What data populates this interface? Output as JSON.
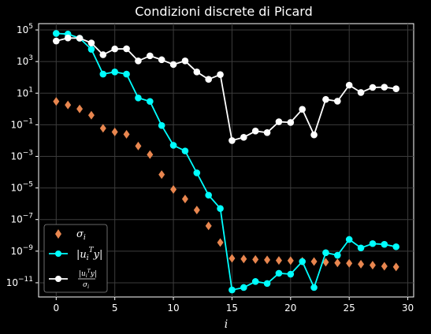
{
  "chart_data": {
    "type": "scatter",
    "title": "Condizioni discrete di Picard",
    "xlabel": "i",
    "ylabel": "",
    "xlim": [
      -1.5,
      30.5
    ],
    "ylim_log10": [
      -11.9,
      5.4
    ],
    "y_scale": "log",
    "grid": true,
    "legend_position": "lower-left",
    "x_ticks": [
      0,
      5,
      10,
      15,
      20,
      25,
      30
    ],
    "y_ticks": [
      {
        "base": "10",
        "exp": "5",
        "value": 100000
      },
      {
        "base": "10",
        "exp": "3",
        "value": 1000
      },
      {
        "base": "10",
        "exp": "1",
        "value": 10
      },
      {
        "base": "10",
        "exp": "−1",
        "value": 0.1
      },
      {
        "base": "10",
        "exp": "−3",
        "value": 0.001
      },
      {
        "base": "10",
        "exp": "−5",
        "value": 1e-05
      },
      {
        "base": "10",
        "exp": "−7",
        "value": 1e-07
      },
      {
        "base": "10",
        "exp": "−9",
        "value": 1e-09
      },
      {
        "base": "10",
        "exp": "−11",
        "value": 1e-11
      }
    ],
    "x": [
      0,
      1,
      2,
      3,
      4,
      5,
      6,
      7,
      8,
      9,
      10,
      11,
      12,
      13,
      14,
      15,
      16,
      17,
      18,
      19,
      20,
      21,
      22,
      23,
      24,
      25,
      26,
      27,
      28,
      29
    ],
    "series": [
      {
        "name": "σ_i",
        "marker": "diamond",
        "line": false,
        "color": "#e8864f",
        "values": [
          3.0,
          1.8,
          1.0,
          0.4,
          0.06,
          0.035,
          0.025,
          0.0045,
          0.0013,
          7e-05,
          8e-06,
          2e-06,
          4e-07,
          4e-08,
          3.5e-09,
          3.5e-10,
          3.2e-10,
          3e-10,
          2.8e-10,
          2.6e-10,
          2.5e-10,
          2.3e-10,
          2.2e-10,
          2e-10,
          1.8e-10,
          1.7e-10,
          1.5e-10,
          1.3e-10,
          1.1e-10,
          1e-10
        ]
      },
      {
        "name": "|u_i^T y|",
        "marker": "circle",
        "line": true,
        "color": "#00ffff",
        "values": [
          60000,
          55000,
          30000,
          6000,
          160,
          220,
          160,
          5,
          3,
          0.09,
          0.005,
          0.0022,
          9e-05,
          3.5e-06,
          5e-07,
          3.5e-12,
          5e-12,
          1.2e-11,
          9e-12,
          4e-11,
          3.5e-11,
          2.2e-10,
          5e-12,
          8e-10,
          5.5e-10,
          5.5e-09,
          1.6e-09,
          3e-09,
          2.7e-09,
          1.9e-09
        ]
      },
      {
        "name": "|u_i^T y| / σ_i",
        "marker": "circle",
        "line": true,
        "color": "#ffffff",
        "values": [
          20000,
          31000,
          30000,
          15000,
          2700,
          6300,
          6400,
          1100,
          2300,
          1300,
          650,
          1100,
          220,
          75,
          150,
          0.01,
          0.016,
          0.04,
          0.032,
          0.155,
          0.14,
          0.95,
          0.023,
          4,
          3.1,
          32,
          11,
          23,
          24,
          19
        ]
      }
    ],
    "legend": [
      {
        "label": "σ",
        "sub": "i"
      },
      {
        "label": "|u",
        "sub": "i",
        "sup": "T",
        "tail": "y|"
      },
      {
        "num": "|u",
        "num_sub": "i",
        "num_sup": "T",
        "num_tail": "y|",
        "den": "σ",
        "den_sub": "i"
      }
    ]
  }
}
